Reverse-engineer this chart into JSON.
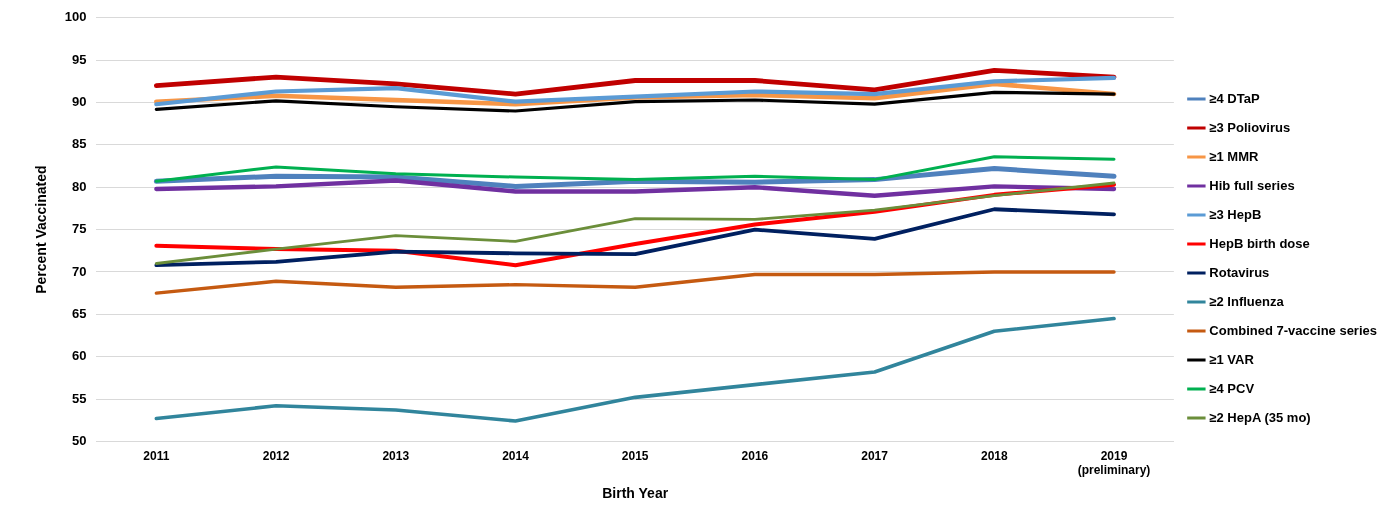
{
  "chart_data": {
    "type": "line",
    "xlabel": "Birth Year",
    "ylabel": "Percent Vaccinated",
    "categories": [
      "2011",
      "2012",
      "2013",
      "2014",
      "2015",
      "2016",
      "2017",
      "2018",
      "2019\n(preliminary)"
    ],
    "ylim": [
      50,
      100
    ],
    "yticks": [
      50,
      55,
      60,
      65,
      70,
      75,
      80,
      85,
      90,
      95,
      100
    ],
    "grid": "y",
    "legend": "right",
    "marker": "none",
    "line_style": "solid",
    "series": [
      {
        "name": "≥4 DTaP",
        "color": "#4f81bd",
        "values": [
          80.7,
          81.3,
          81.2,
          80.1,
          80.7,
          80.6,
          80.9,
          82.2,
          81.3
        ]
      },
      {
        "name": "≥3 Poliovirus",
        "color": "#c00000",
        "values": [
          92.0,
          93.0,
          92.2,
          91.0,
          92.6,
          92.6,
          91.5,
          93.8,
          93.0
        ]
      },
      {
        "name": "≥1 MMR",
        "color": "#f79646",
        "values": [
          90.1,
          90.8,
          90.3,
          89.8,
          90.6,
          90.9,
          90.5,
          92.2,
          91.0
        ]
      },
      {
        "name": "Hib full series",
        "color": "#7030a0",
        "values": [
          79.8,
          80.1,
          80.8,
          79.5,
          79.5,
          80.0,
          79.0,
          80.1,
          79.8
        ]
      },
      {
        "name": "≥3 HepB",
        "color": "#5b9bd5",
        "values": [
          89.8,
          91.3,
          91.7,
          90.1,
          90.7,
          91.3,
          91.0,
          92.5,
          92.9
        ]
      },
      {
        "name": "HepB birth dose",
        "color": "#ff0000",
        "values": [
          73.1,
          72.7,
          72.5,
          70.8,
          73.3,
          75.6,
          77.1,
          79.1,
          80.3
        ]
      },
      {
        "name": "Rotavirus",
        "color": "#002060",
        "values": [
          70.8,
          71.2,
          72.4,
          72.2,
          72.1,
          75.0,
          73.9,
          77.4,
          76.8
        ]
      },
      {
        "name": "≥2 Influenza",
        "color": "#31859c",
        "values": [
          52.7,
          54.2,
          53.7,
          52.4,
          55.2,
          56.7,
          58.2,
          63.0,
          64.5
        ]
      },
      {
        "name": "Combined 7-vaccine series",
        "color": "#c55a11",
        "values": [
          67.5,
          68.9,
          68.2,
          68.5,
          68.2,
          69.7,
          69.7,
          70.0,
          70.0
        ]
      },
      {
        "name": "≥1 VAR",
        "color": "#000000",
        "values": [
          89.2,
          90.2,
          89.5,
          89.0,
          90.1,
          90.3,
          89.8,
          91.2,
          91.0
        ]
      },
      {
        "name": "≥4 PCV",
        "color": "#00b050",
        "values": [
          80.7,
          82.4,
          81.6,
          81.2,
          80.9,
          81.3,
          80.9,
          83.6,
          83.3
        ]
      },
      {
        "name": "≥2 HepA (35 mo)",
        "color": "#6b8e3a",
        "values": [
          71.0,
          72.7,
          74.3,
          73.6,
          76.3,
          76.2,
          77.3,
          79.0,
          80.5
        ]
      }
    ]
  }
}
